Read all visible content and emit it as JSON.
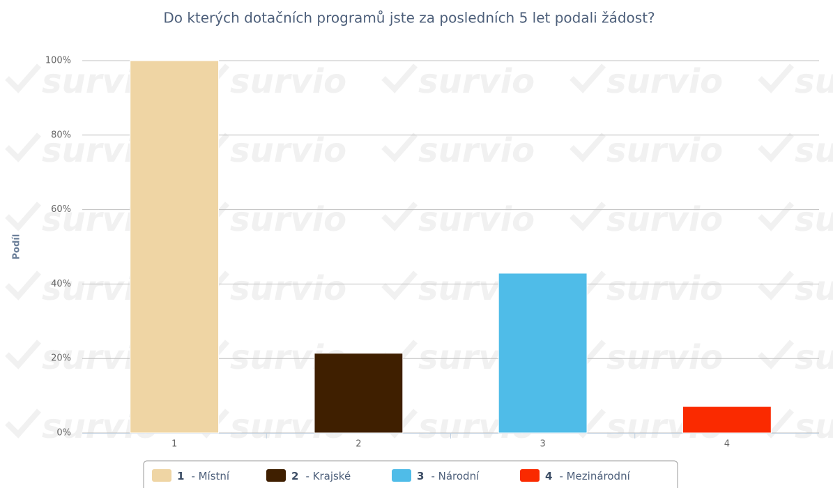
{
  "chart_data": {
    "type": "bar",
    "title": "Do kterých dotačních programů jste za posledních 5 let podali žádost?",
    "ylabel": "Podíl",
    "watermark": "survio",
    "categories": [
      "1",
      "2",
      "3",
      "4"
    ],
    "legend_labels": [
      "- Místní",
      "- Krajské",
      "- Národní",
      "- Mezinárodní"
    ],
    "values": [
      100,
      21.4,
      42.9,
      7.1
    ],
    "colors": [
      "#efd5a4",
      "#3f1f00",
      "#4fbce8",
      "#fa2a00"
    ],
    "ylim": [
      0,
      100
    ],
    "yticks": [
      {
        "value": 0,
        "label": "0%"
      },
      {
        "value": 20,
        "label": "20%"
      },
      {
        "value": 40,
        "label": "40%"
      },
      {
        "value": 60,
        "label": "60%"
      },
      {
        "value": 80,
        "label": "80%"
      },
      {
        "value": 100,
        "label": "100%"
      }
    ],
    "grid": true
  }
}
